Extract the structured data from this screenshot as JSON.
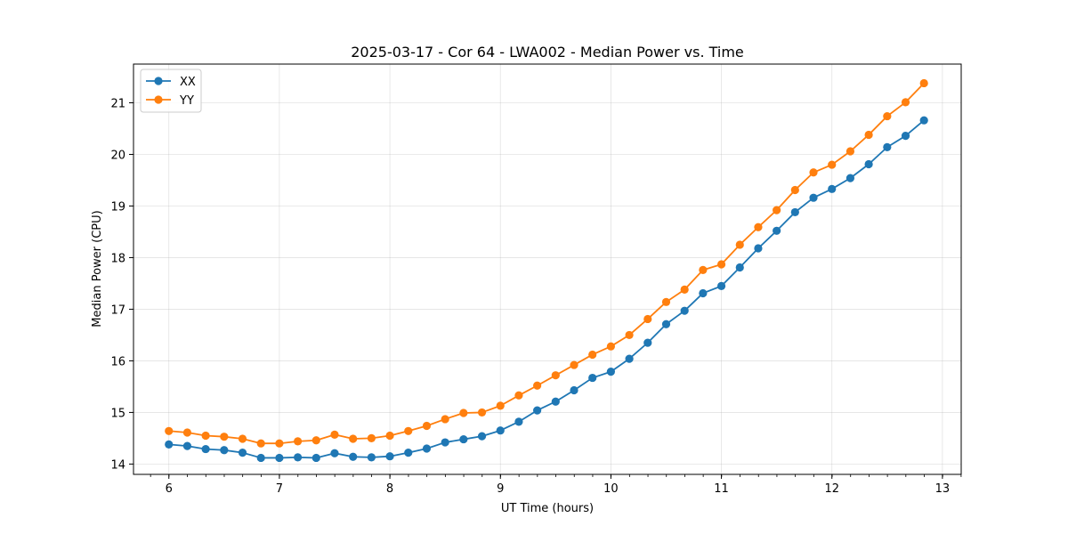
{
  "chart_data": {
    "type": "line",
    "title": "2025-03-17 - Cor 64 - LWA002 - Median Power vs. Time",
    "xlabel": "UT Time (hours)",
    "ylabel": "Median Power (CPU)",
    "xlim": [
      5.68,
      13.17
    ],
    "ylim": [
      13.8,
      21.75
    ],
    "xticks": [
      6,
      7,
      8,
      9,
      10,
      11,
      12,
      13
    ],
    "yticks": [
      14,
      15,
      16,
      17,
      18,
      19,
      20,
      21
    ],
    "x_minor_step": 0.1667,
    "grid": true,
    "legend_position": "upper-left",
    "x": [
      6.0,
      6.1667,
      6.3333,
      6.5,
      6.6667,
      6.8333,
      7.0,
      7.1667,
      7.3333,
      7.5,
      7.6667,
      7.8333,
      8.0,
      8.1667,
      8.3333,
      8.5,
      8.6667,
      8.8333,
      9.0,
      9.1667,
      9.3333,
      9.5,
      9.6667,
      9.8333,
      10.0,
      10.1667,
      10.3333,
      10.5,
      10.6667,
      10.8333,
      11.0,
      11.1667,
      11.3333,
      11.5,
      11.6667,
      11.8333,
      12.0,
      12.1667,
      12.3333,
      12.5,
      12.6667,
      12.8333
    ],
    "series": [
      {
        "name": "XX",
        "color": "#1f77b4",
        "values": [
          14.38,
          14.35,
          14.29,
          14.27,
          14.22,
          14.12,
          14.12,
          14.13,
          14.12,
          14.21,
          14.14,
          14.13,
          14.15,
          14.22,
          14.3,
          14.42,
          14.48,
          14.54,
          14.65,
          14.82,
          15.04,
          15.21,
          15.43,
          15.67,
          15.79,
          16.04,
          16.35,
          16.71,
          16.97,
          17.31,
          17.45,
          17.81,
          18.18,
          18.52,
          18.88,
          19.16,
          19.33,
          19.54,
          19.81,
          20.14,
          20.36,
          20.66
        ]
      },
      {
        "name": "YY",
        "color": "#ff7f0e",
        "values": [
          14.64,
          14.61,
          14.55,
          14.53,
          14.49,
          14.4,
          14.4,
          14.44,
          14.46,
          14.57,
          14.49,
          14.5,
          14.55,
          14.64,
          14.74,
          14.87,
          14.99,
          15.0,
          15.13,
          15.33,
          15.52,
          15.72,
          15.92,
          16.12,
          16.28,
          16.5,
          16.81,
          17.14,
          17.38,
          17.76,
          17.87,
          18.25,
          18.59,
          18.92,
          19.31,
          19.65,
          19.8,
          20.06,
          20.38,
          20.74,
          21.01,
          21.38
        ]
      }
    ]
  }
}
